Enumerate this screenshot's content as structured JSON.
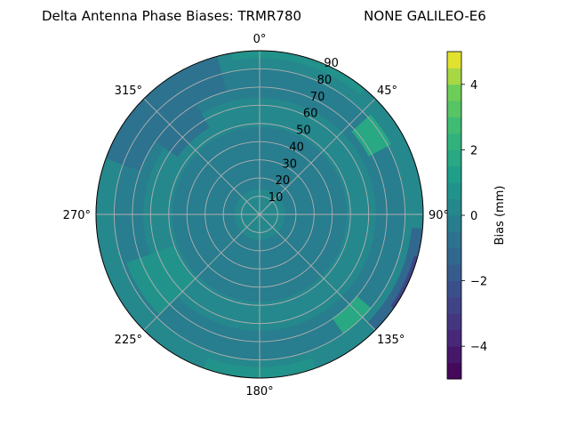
{
  "chart_data": {
    "type": "polar-contour",
    "title": "Delta Antenna Phase Biases: TRMR780",
    "subtitle": "NONE GALILEO-E6",
    "colorbar": {
      "label": "Bias (mm)",
      "range": [
        -5,
        5
      ],
      "ticks": [
        "−4",
        "−2",
        "0",
        "2",
        "4"
      ],
      "tick_values": [
        -4,
        -2,
        0,
        2,
        4
      ],
      "levels": [
        -5,
        -4.5,
        -4,
        -3.5,
        -3,
        -2.5,
        -2,
        -1.5,
        -1,
        -0.5,
        0,
        0.5,
        1,
        1.5,
        2,
        2.5,
        3,
        3.5,
        4,
        4.5,
        5
      ],
      "colormap": "viridis"
    },
    "radial_axis": {
      "ticks": [
        "10",
        "20",
        "30",
        "40",
        "50",
        "60",
        "70",
        "80",
        "90"
      ],
      "tick_values": [
        10,
        20,
        30,
        40,
        50,
        60,
        70,
        80,
        90
      ],
      "range": [
        0,
        90
      ]
    },
    "angular_axis": {
      "ticks": [
        "0°",
        "45°",
        "90°",
        "135°",
        "180°",
        "225°",
        "270°",
        "315°"
      ],
      "tick_values": [
        0,
        45,
        90,
        135,
        180,
        225,
        270,
        315
      ],
      "zero_location": "top",
      "direction": "clockwise"
    },
    "grid": true,
    "background_value": 0.25,
    "regions": [
      {
        "label": "ring-dark-inner",
        "value": -0.25,
        "r": [
          14,
          48
        ],
        "az": [
          0,
          360
        ]
      },
      {
        "label": "ring-dark-outer",
        "value": -0.25,
        "r": [
          64,
          80
        ],
        "az": [
          0,
          360
        ]
      },
      {
        "label": "center-teal",
        "value": 0.25,
        "r": [
          0,
          14
        ],
        "az": [
          0,
          360
        ]
      },
      {
        "label": "nw-rim",
        "value": -0.75,
        "r": [
          70,
          90
        ],
        "az": [
          290,
          345
        ]
      },
      {
        "label": "nw-patch",
        "value": -0.75,
        "r": [
          55,
          70
        ],
        "az": [
          305,
          330
        ]
      },
      {
        "label": "east-rim",
        "value": -1.25,
        "r": [
          84,
          90
        ],
        "az": [
          95,
          135
        ]
      },
      {
        "label": "east-rim-dark",
        "value": -2.75,
        "r": [
          88,
          90
        ],
        "az": [
          105,
          125
        ]
      },
      {
        "label": "ne-green",
        "value": 1.75,
        "r": [
          68,
          82
        ],
        "az": [
          48,
          62
        ]
      },
      {
        "label": "se-green",
        "value": 1.75,
        "r": [
          70,
          80
        ],
        "az": [
          130,
          145
        ]
      },
      {
        "label": "north-rim-light",
        "value": 0.75,
        "r": [
          86,
          90
        ],
        "az": [
          350,
          40
        ]
      },
      {
        "label": "sw-light",
        "value": 0.75,
        "r": [
          50,
          78
        ],
        "az": [
          225,
          250
        ]
      },
      {
        "label": "south-rim-light",
        "value": 0.75,
        "r": [
          84,
          90
        ],
        "az": [
          160,
          200
        ]
      }
    ]
  }
}
